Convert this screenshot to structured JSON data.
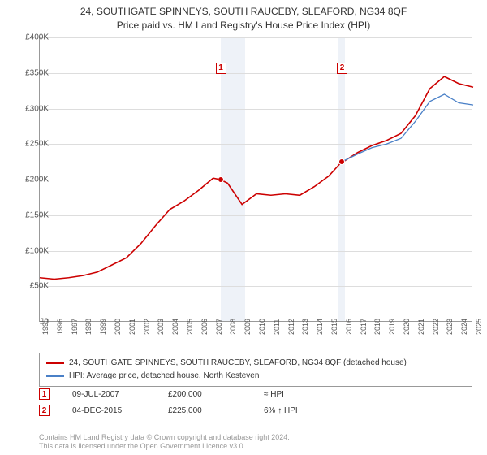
{
  "title": {
    "line1": "24, SOUTHGATE SPINNEYS, SOUTH RAUCEBY, SLEAFORD, NG34 8QF",
    "line2": "Price paid vs. HM Land Registry's House Price Index (HPI)"
  },
  "chart": {
    "type": "line",
    "background_color": "#ffffff",
    "grid_color": "#dddddd",
    "axis_color": "#999999",
    "xlim": [
      1995,
      2025
    ],
    "ylim": [
      0,
      400000
    ],
    "ytick_step": 50000,
    "yticks": [
      "£0",
      "£50K",
      "£100K",
      "£150K",
      "£200K",
      "£250K",
      "£300K",
      "£350K",
      "£400K"
    ],
    "xticks": [
      1995,
      1996,
      1997,
      1998,
      1999,
      2000,
      2001,
      2002,
      2003,
      2004,
      2005,
      2006,
      2007,
      2008,
      2009,
      2010,
      2011,
      2012,
      2013,
      2014,
      2015,
      2016,
      2017,
      2018,
      2019,
      2020,
      2021,
      2022,
      2023,
      2024,
      2025
    ],
    "shaded_bands": [
      {
        "from": 2007.5,
        "to": 2009.2,
        "color": "#eef2f8"
      },
      {
        "from": 2015.6,
        "to": 2016.1,
        "color": "#eef2f8"
      }
    ],
    "series": [
      {
        "name": "property",
        "label": "24, SOUTHGATE SPINNEYS, SOUTH RAUCEBY, SLEAFORD, NG34 8QF (detached house)",
        "color": "#cc0000",
        "line_width": 1.6,
        "data": [
          [
            1995,
            62000
          ],
          [
            1996,
            60000
          ],
          [
            1997,
            62000
          ],
          [
            1998,
            65000
          ],
          [
            1999,
            70000
          ],
          [
            2000,
            80000
          ],
          [
            2001,
            90000
          ],
          [
            2002,
            110000
          ],
          [
            2003,
            135000
          ],
          [
            2004,
            158000
          ],
          [
            2005,
            170000
          ],
          [
            2006,
            185000
          ],
          [
            2007,
            202000
          ],
          [
            2007.5,
            200000
          ],
          [
            2008,
            195000
          ],
          [
            2009,
            165000
          ],
          [
            2010,
            180000
          ],
          [
            2011,
            178000
          ],
          [
            2012,
            180000
          ],
          [
            2013,
            178000
          ],
          [
            2014,
            190000
          ],
          [
            2015,
            205000
          ],
          [
            2015.9,
            225000
          ],
          [
            2016,
            225000
          ],
          [
            2017,
            238000
          ],
          [
            2018,
            248000
          ],
          [
            2019,
            255000
          ],
          [
            2020,
            265000
          ],
          [
            2021,
            290000
          ],
          [
            2022,
            328000
          ],
          [
            2023,
            345000
          ],
          [
            2024,
            335000
          ],
          [
            2025,
            330000
          ]
        ]
      },
      {
        "name": "hpi",
        "label": "HPI: Average price, detached house, North Kesteven",
        "color": "#4a80c7",
        "line_width": 1.3,
        "data": [
          [
            2015.9,
            225000
          ],
          [
            2016,
            226000
          ],
          [
            2017,
            236000
          ],
          [
            2018,
            245000
          ],
          [
            2019,
            250000
          ],
          [
            2020,
            258000
          ],
          [
            2021,
            282000
          ],
          [
            2022,
            310000
          ],
          [
            2023,
            320000
          ],
          [
            2024,
            308000
          ],
          [
            2025,
            305000
          ]
        ]
      }
    ],
    "markers": [
      {
        "id": "1",
        "x": 2007.5,
        "y_box": 365000,
        "dot_x": 2007.5,
        "dot_y": 200000
      },
      {
        "id": "2",
        "x": 2015.9,
        "y_box": 365000,
        "dot_x": 2015.9,
        "dot_y": 225000
      }
    ]
  },
  "legend": {
    "border_color": "#999999",
    "items": [
      {
        "color": "#cc0000",
        "text": "24, SOUTHGATE SPINNEYS, SOUTH RAUCEBY, SLEAFORD, NG34 8QF (detached house)"
      },
      {
        "color": "#4a80c7",
        "text": "HPI: Average price, detached house, North Kesteven"
      }
    ]
  },
  "transactions": [
    {
      "marker": "1",
      "date": "09-JUL-2007",
      "price": "£200,000",
      "comparison": "≈ HPI"
    },
    {
      "marker": "2",
      "date": "04-DEC-2015",
      "price": "£225,000",
      "comparison": "6% ↑ HPI"
    }
  ],
  "footer": {
    "line1": "Contains HM Land Registry data © Crown copyright and database right 2024.",
    "line2": "This data is licensed under the Open Government Licence v3.0."
  },
  "colors": {
    "marker_border": "#cc0000",
    "footer_text": "#999999"
  }
}
